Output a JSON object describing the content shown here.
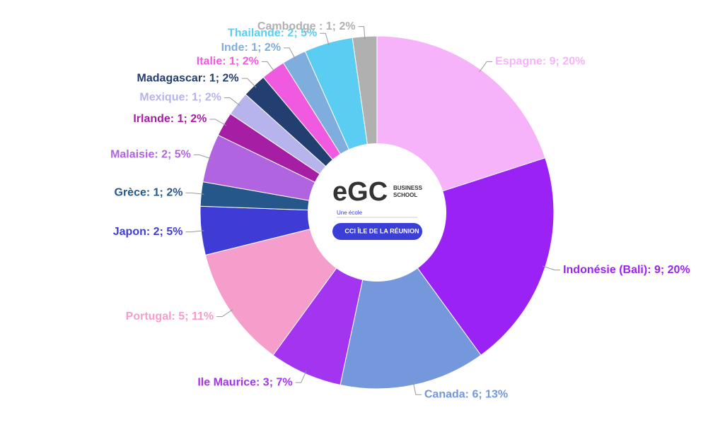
{
  "chart_data": {
    "type": "donut",
    "categories": [
      "Espagne",
      "Indonésie (Bali)",
      "Canada",
      "Ile Maurice",
      "Portugal",
      "Japon",
      "Grèce",
      "Malaisie",
      "Irlande",
      "Mexique",
      "Madagascar",
      "Italie",
      "Inde",
      "Thailande",
      "Cambodge"
    ],
    "values": [
      9,
      9,
      6,
      3,
      5,
      2,
      1,
      2,
      1,
      1,
      1,
      1,
      1,
      2,
      1
    ],
    "value_labels": [
      "Espagne: 9; 20%",
      "Indonésie (Bali): 9; 20%",
      "Canada: 6; 13%",
      "Ile Maurice: 3; 7%",
      "Portugal: 5; 11%",
      "Japon: 2; 5%",
      "Grèce: 1; 2%",
      "Malaisie: 2; 5%",
      "Irlande: 1; 2%",
      "Mexique: 1; 2%",
      "Madagascar: 1; 2%",
      "Italie: 1; 2%",
      "Inde: 1; 2%",
      "Thailande: 2; 5%",
      "Cambodge : 1; 2%"
    ],
    "colors": [
      "#f7b3f9",
      "#9b22f5",
      "#7597dc",
      "#a335f0",
      "#f59dcb",
      "#3f3cd6",
      "#25578a",
      "#b064e0",
      "#a61ea3",
      "#b7b3ec",
      "#233e70",
      "#ef5ae0",
      "#7fadde",
      "#5bcdf3",
      "#b0b0b0"
    ]
  },
  "logo": {
    "brand": "eGC",
    "school_1": "BUSINESS",
    "school_2": "SCHOOL",
    "tagline": "Une école",
    "badge": "CCI ÎLE DE LA RÉUNION"
  }
}
